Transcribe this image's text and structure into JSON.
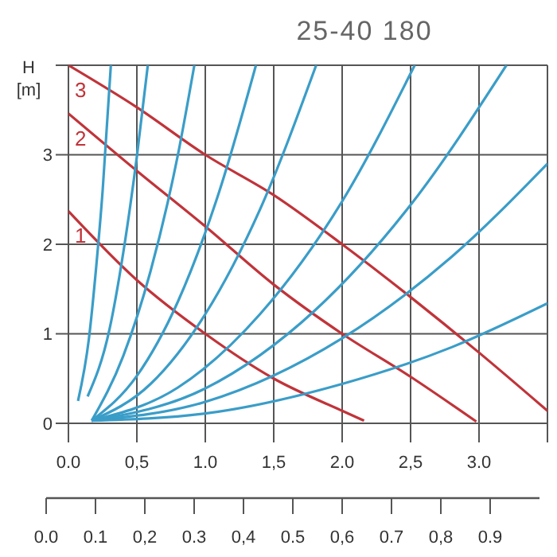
{
  "chart_data": {
    "type": "line",
    "title": "25-40 180",
    "ylabel": "H [m]",
    "xlim": [
      0,
      3.5
    ],
    "xticks": [
      {
        "value": 0,
        "label": "0.0"
      },
      {
        "value": 0.5,
        "label": "0,5"
      },
      {
        "value": 1,
        "label": "1.0"
      },
      {
        "value": 1.5,
        "label": "1,5"
      },
      {
        "value": 2,
        "label": "2.0"
      },
      {
        "value": 2.5,
        "label": "2,5"
      },
      {
        "value": 3,
        "label": "3.0"
      },
      {
        "value": 3.5,
        "label": null
      }
    ],
    "x2lim": [
      0,
      1.0
    ],
    "x2ticks": [
      {
        "value": 0,
        "label": "0.0"
      },
      0.1,
      {
        "value": 0.2,
        "label": "0,2"
      },
      0.3,
      {
        "value": 0.4,
        "label": "0,4"
      },
      0.5,
      {
        "value": 0.6,
        "label": "0,6"
      },
      0.7,
      {
        "value": 0.8,
        "label": "0,8"
      },
      0.9
    ],
    "ylim": [
      0,
      4
    ],
    "yticks": [
      0,
      1,
      2,
      3,
      {
        "value": 4,
        "label": null
      }
    ],
    "grid": true,
    "marker": "none",
    "line_style": "solid",
    "series": [
      {
        "name": "1",
        "color": "#c0343a",
        "x": [
          0,
          0.5,
          1.0,
          1.5,
          2.0,
          2.16
        ],
        "values": [
          2.37,
          1.6,
          1.0,
          0.5,
          0.14,
          0.03
        ]
      },
      {
        "name": "2",
        "color": "#c0343a",
        "x": [
          0,
          0.5,
          1.0,
          1.5,
          2.0,
          2.5,
          2.98
        ],
        "values": [
          3.46,
          2.82,
          2.2,
          1.55,
          1.0,
          0.52,
          0.02
        ]
      },
      {
        "name": "3",
        "color": "#c0343a",
        "x": [
          0,
          0.5,
          1.0,
          1.5,
          2.0,
          2.5,
          3.0,
          3.5
        ],
        "values": [
          4.0,
          3.53,
          3.0,
          2.55,
          2.0,
          1.41,
          0.79,
          0.14
        ]
      },
      {
        "color": "#3a9dc8",
        "x": [
          0.07,
          0.15,
          0.2,
          0.25,
          0.31
        ],
        "values": [
          0.25,
          0.95,
          1.7,
          2.6,
          4.0
        ]
      },
      {
        "color": "#3a9dc8",
        "x": [
          0.14,
          0.3,
          0.4,
          0.5,
          0.58
        ],
        "values": [
          0.3,
          1.05,
          1.9,
          2.98,
          4.0
        ]
      },
      {
        "color": "#3a9dc8",
        "x": [
          0.17,
          0.4,
          0.6,
          0.8,
          0.92
        ],
        "values": [
          0.03,
          0.75,
          1.7,
          3.0,
          4.0
        ]
      },
      {
        "color": "#3a9dc8",
        "x": [
          0.17,
          0.5,
          0.8,
          1.1,
          1.37
        ],
        "values": [
          0.03,
          0.53,
          1.36,
          2.58,
          4.0
        ]
      },
      {
        "color": "#3a9dc8",
        "x": [
          0.17,
          0.6,
          1.0,
          1.4,
          1.81
        ],
        "values": [
          0.03,
          0.44,
          1.22,
          2.39,
          4.0
        ]
      },
      {
        "color": "#3a9dc8",
        "x": [
          0.17,
          0.8,
          1.4,
          2.0,
          2.53
        ],
        "values": [
          0.03,
          0.4,
          1.22,
          2.48,
          4.0
        ]
      },
      {
        "color": "#3a9dc8",
        "x": [
          0.17,
          1.0,
          1.8,
          2.5,
          3.2
        ],
        "values": [
          0.03,
          0.39,
          1.26,
          2.44,
          4.0
        ]
      },
      {
        "color": "#3a9dc8",
        "x": [
          0.17,
          1.0,
          2.0,
          2.8,
          3.5
        ],
        "values": [
          0.03,
          0.24,
          0.95,
          1.86,
          2.9
        ]
      },
      {
        "color": "#3a9dc8",
        "x": [
          0.17,
          1.0,
          2.0,
          2.8,
          3.5
        ],
        "values": [
          0.03,
          0.11,
          0.44,
          0.85,
          1.34
        ]
      }
    ]
  }
}
